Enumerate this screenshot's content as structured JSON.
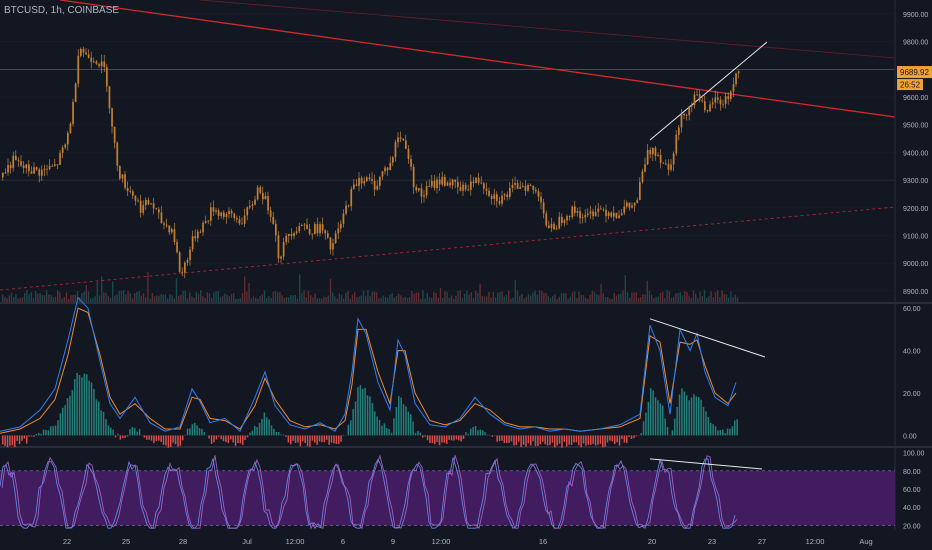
{
  "symbol_title": "BTCUSD, 1h, COINBASE",
  "colors": {
    "background": "#131722",
    "grid": "#2a2e39",
    "text": "#b2b5be",
    "candle_body": "#c87f2e",
    "candle_wick": "#d99a4a",
    "trendline_red": "#d42a2a",
    "trendline_white": "#e8e8e8",
    "price_badge": "#f0a330",
    "macd_blue": "#2f7ef2",
    "macd_orange": "#f28a2f",
    "hist_pos": "#26a69a",
    "hist_neg": "#ef5350",
    "rsi_fill": "#4a1d6a",
    "rsi_line1": "#5b86e5",
    "rsi_line2": "#b064c8"
  },
  "chart_data": [
    {
      "type": "candlestick",
      "panel": "price",
      "y_ticks": [
        "9900.00",
        "9800.00",
        "9700.00",
        "9600.00",
        "9500.00",
        "9400.00",
        "9300.00",
        "9200.00",
        "9100.00",
        "9000.00",
        "8900.00"
      ],
      "ylim": [
        8860,
        9950
      ],
      "last_price": "9689.92",
      "countdown": "26:52",
      "close_path": [
        [
          0,
          9310
        ],
        [
          12,
          9370
        ],
        [
          25,
          9340
        ],
        [
          40,
          9330
        ],
        [
          55,
          9350
        ],
        [
          65,
          9430
        ],
        [
          72,
          9560
        ],
        [
          78,
          9790
        ],
        [
          85,
          9750
        ],
        [
          95,
          9740
        ],
        [
          105,
          9690
        ],
        [
          112,
          9460
        ],
        [
          118,
          9330
        ],
        [
          125,
          9280
        ],
        [
          132,
          9250
        ],
        [
          140,
          9200
        ],
        [
          150,
          9220
        ],
        [
          160,
          9150
        ],
        [
          172,
          9120
        ],
        [
          180,
          8950
        ],
        [
          186,
          9020
        ],
        [
          195,
          9110
        ],
        [
          205,
          9150
        ],
        [
          212,
          9200
        ],
        [
          220,
          9180
        ],
        [
          230,
          9170
        ],
        [
          240,
          9150
        ],
        [
          250,
          9200
        ],
        [
          258,
          9280
        ],
        [
          265,
          9220
        ],
        [
          272,
          9170
        ],
        [
          278,
          9020
        ],
        [
          288,
          9110
        ],
        [
          300,
          9140
        ],
        [
          312,
          9120
        ],
        [
          320,
          9130
        ],
        [
          330,
          9050
        ],
        [
          340,
          9140
        ],
        [
          350,
          9250
        ],
        [
          358,
          9310
        ],
        [
          365,
          9300
        ],
        [
          375,
          9280
        ],
        [
          382,
          9330
        ],
        [
          390,
          9360
        ],
        [
          397,
          9460
        ],
        [
          405,
          9430
        ],
        [
          412,
          9300
        ],
        [
          420,
          9240
        ],
        [
          430,
          9280
        ],
        [
          440,
          9300
        ],
        [
          450,
          9290
        ],
        [
          460,
          9260
        ],
        [
          470,
          9290
        ],
        [
          480,
          9300
        ],
        [
          490,
          9250
        ],
        [
          500,
          9230
        ],
        [
          510,
          9260
        ],
        [
          520,
          9290
        ],
        [
          530,
          9270
        ],
        [
          540,
          9240
        ],
        [
          547,
          9110
        ],
        [
          555,
          9140
        ],
        [
          565,
          9180
        ],
        [
          575,
          9190
        ],
        [
          585,
          9160
        ],
        [
          595,
          9200
        ],
        [
          605,
          9190
        ],
        [
          615,
          9180
        ],
        [
          625,
          9200
        ],
        [
          635,
          9210
        ],
        [
          645,
          9380
        ],
        [
          652,
          9420
        ],
        [
          660,
          9380
        ],
        [
          668,
          9340
        ],
        [
          675,
          9450
        ],
        [
          682,
          9540
        ],
        [
          690,
          9570
        ],
        [
          697,
          9630
        ],
        [
          705,
          9520
        ],
        [
          712,
          9590
        ],
        [
          720,
          9580
        ],
        [
          728,
          9600
        ],
        [
          736,
          9690
        ]
      ]
    },
    {
      "type": "line",
      "panel": "macd",
      "y_ticks": [
        "60.00",
        "40.00",
        "20.00",
        "0.00"
      ],
      "ylim": [
        -5,
        62
      ],
      "series": [
        {
          "role": "blue",
          "points": [
            [
              0,
              2
            ],
            [
              20,
              4
            ],
            [
              40,
              12
            ],
            [
              55,
              22
            ],
            [
              68,
              45
            ],
            [
              78,
              65
            ],
            [
              88,
              60
            ],
            [
              100,
              35
            ],
            [
              110,
              15
            ],
            [
              120,
              8
            ],
            [
              135,
              18
            ],
            [
              150,
              6
            ],
            [
              165,
              2
            ],
            [
              180,
              4
            ],
            [
              192,
              22
            ],
            [
              200,
              16
            ],
            [
              210,
              6
            ],
            [
              225,
              8
            ],
            [
              240,
              2
            ],
            [
              255,
              18
            ],
            [
              265,
              30
            ],
            [
              275,
              14
            ],
            [
              290,
              5
            ],
            [
              305,
              3
            ],
            [
              320,
              6
            ],
            [
              335,
              2
            ],
            [
              345,
              10
            ],
            [
              352,
              30
            ],
            [
              358,
              55
            ],
            [
              366,
              48
            ],
            [
              378,
              25
            ],
            [
              390,
              12
            ],
            [
              398,
              45
            ],
            [
              405,
              38
            ],
            [
              415,
              15
            ],
            [
              430,
              5
            ],
            [
              445,
              4
            ],
            [
              460,
              8
            ],
            [
              475,
              18
            ],
            [
              490,
              10
            ],
            [
              505,
              5
            ],
            [
              520,
              3
            ],
            [
              535,
              4
            ],
            [
              550,
              2
            ],
            [
              565,
              3
            ],
            [
              580,
              2
            ],
            [
              600,
              3
            ],
            [
              620,
              5
            ],
            [
              640,
              10
            ],
            [
              650,
              52
            ],
            [
              660,
              40
            ],
            [
              670,
              10
            ],
            [
              680,
              50
            ],
            [
              690,
              40
            ],
            [
              697,
              48
            ],
            [
              705,
              30
            ],
            [
              715,
              18
            ],
            [
              728,
              14
            ],
            [
              736,
              25
            ]
          ]
        },
        {
          "role": "orange",
          "points": [
            [
              0,
              1
            ],
            [
              20,
              3
            ],
            [
              40,
              8
            ],
            [
              55,
              17
            ],
            [
              68,
              38
            ],
            [
              78,
              60
            ],
            [
              88,
              58
            ],
            [
              100,
              38
            ],
            [
              110,
              18
            ],
            [
              120,
              10
            ],
            [
              135,
              15
            ],
            [
              150,
              8
            ],
            [
              165,
              3
            ],
            [
              180,
              3
            ],
            [
              192,
              18
            ],
            [
              200,
              17
            ],
            [
              210,
              8
            ],
            [
              225,
              7
            ],
            [
              240,
              3
            ],
            [
              255,
              14
            ],
            [
              265,
              27
            ],
            [
              275,
              17
            ],
            [
              290,
              7
            ],
            [
              305,
              4
            ],
            [
              320,
              5
            ],
            [
              335,
              3
            ],
            [
              345,
              7
            ],
            [
              352,
              24
            ],
            [
              358,
              50
            ],
            [
              366,
              50
            ],
            [
              378,
              30
            ],
            [
              390,
              15
            ],
            [
              398,
              40
            ],
            [
              405,
              40
            ],
            [
              415,
              20
            ],
            [
              430,
              7
            ],
            [
              445,
              5
            ],
            [
              460,
              7
            ],
            [
              475,
              15
            ],
            [
              490,
              12
            ],
            [
              505,
              6
            ],
            [
              520,
              4
            ],
            [
              535,
              4
            ],
            [
              550,
              3
            ],
            [
              565,
              3
            ],
            [
              580,
              2
            ],
            [
              600,
              3
            ],
            [
              620,
              4
            ],
            [
              640,
              8
            ],
            [
              650,
              47
            ],
            [
              660,
              44
            ],
            [
              670,
              15
            ],
            [
              680,
              44
            ],
            [
              690,
              43
            ],
            [
              697,
              45
            ],
            [
              705,
              33
            ],
            [
              715,
              20
            ],
            [
              728,
              15
            ],
            [
              736,
              20
            ]
          ]
        }
      ]
    },
    {
      "type": "line",
      "panel": "stoch_rsi",
      "y_ticks": [
        "100.00",
        "80.00",
        "60.00",
        "40.00",
        "20.00"
      ],
      "ylim": [
        15,
        105
      ],
      "band": [
        20,
        80
      ],
      "mean": 50
    }
  ],
  "x_ticks": [
    "22",
    "25",
    "28",
    "Jul",
    "12:00",
    "6",
    "9",
    "12:00",
    "16",
    "20",
    "23",
    "27",
    "12:00",
    "Aug"
  ]
}
